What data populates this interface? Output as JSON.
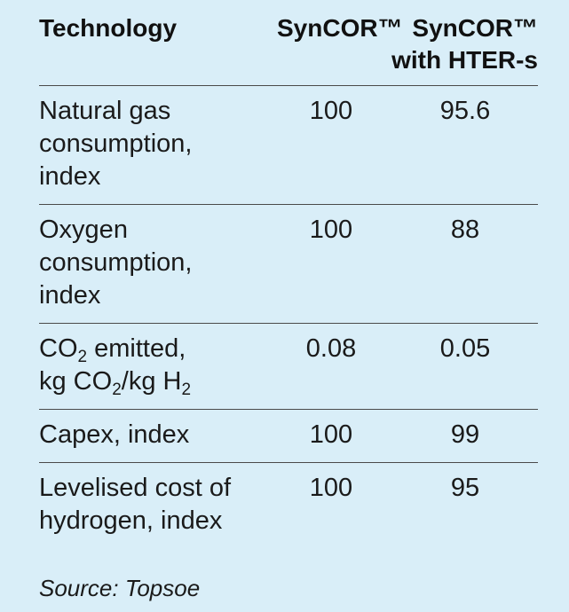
{
  "table": {
    "headers": {
      "technology": "Technology",
      "syncor": "SynCOR™",
      "syncor_hter_line1": "SynCOR™",
      "syncor_hter_line2": "with HTER-s"
    },
    "rows": [
      {
        "label_lines": [
          "Natural gas",
          "consumption,",
          "index"
        ],
        "syncor": "100",
        "syncor_hter": "95.6"
      },
      {
        "label_lines": [
          "Oxygen",
          "consumption,",
          "index"
        ],
        "syncor": "100",
        "syncor_hter": "88"
      },
      {
        "label_line1_a": "CO",
        "label_line1_sub": "2",
        "label_line1_b": " emitted,",
        "label_line2_a": "kg CO",
        "label_line2_sub1": "2",
        "label_line2_b": "/kg H",
        "label_line2_sub2": "2",
        "syncor": "0.08",
        "syncor_hter": "0.05"
      },
      {
        "label_lines": [
          "Capex, index"
        ],
        "syncor": "100",
        "syncor_hter": "99"
      },
      {
        "label_lines": [
          "Levelised cost of",
          "hydrogen, index"
        ],
        "syncor": "100",
        "syncor_hter": "95"
      }
    ]
  },
  "source": "Source: Topsoe",
  "colors": {
    "background": "#d9eef8",
    "text": "#1a1a1a",
    "rule": "#4a4a4a"
  }
}
